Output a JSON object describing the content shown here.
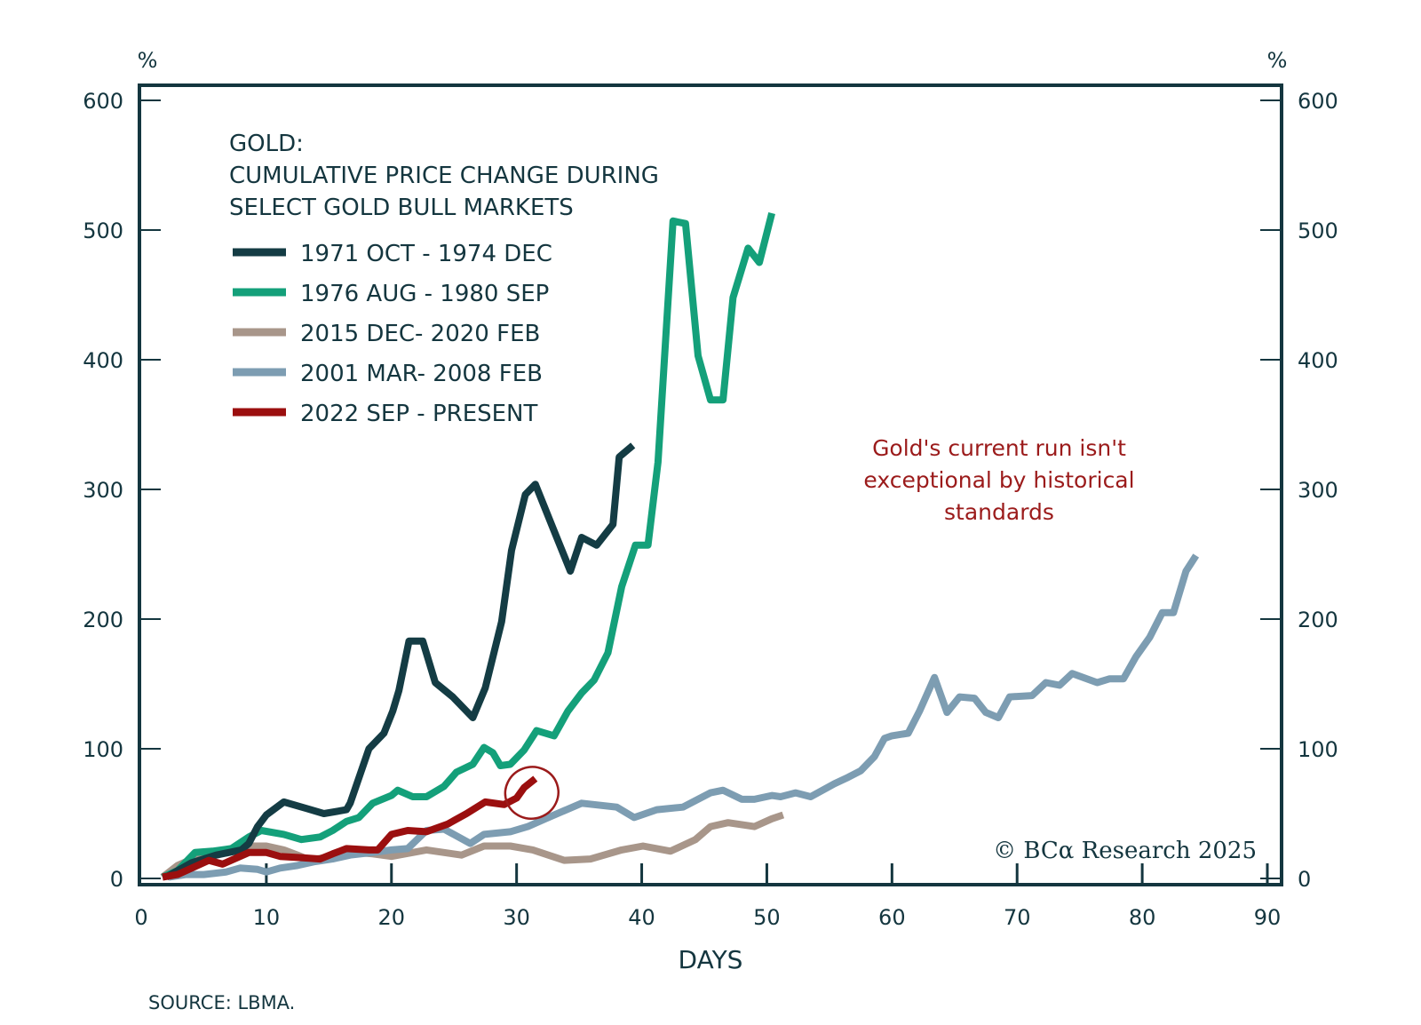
{
  "chart_data": {
    "type": "line",
    "title": "GOLD:",
    "subtitle_lines": [
      "CUMULATIVE PRICE CHANGE DURING",
      "SELECT GOLD BULL MARKETS"
    ],
    "xlabel": "DAYS",
    "ylabel_left": "%",
    "ylabel_right": "%",
    "xlim": [
      0,
      90
    ],
    "ylim": [
      0,
      600
    ],
    "x_ticks": [
      0,
      10,
      20,
      30,
      40,
      50,
      60,
      70,
      80,
      90
    ],
    "y_ticks": [
      0,
      100,
      200,
      300,
      400,
      500,
      600
    ],
    "grid": false,
    "legend_position": "top-left",
    "annotation": {
      "lines": [
        "Gold's current run isn't",
        "exceptional by historical",
        "standards"
      ],
      "color": "#9b1b1b",
      "circled_point": [
        31.5,
        77
      ]
    },
    "copyright": "© BCα Research 2025",
    "source": "SOURCE: LBMA.",
    "series": [
      {
        "name": "1971 OCT - 1974 DEC",
        "color": "#143c44",
        "points": [
          [
            2,
            1
          ],
          [
            4,
            12
          ],
          [
            6,
            18
          ],
          [
            8,
            22
          ],
          [
            8.6,
            27
          ],
          [
            9.3,
            40
          ],
          [
            10,
            49
          ],
          [
            11.4,
            59
          ],
          [
            13.2,
            54
          ],
          [
            14.6,
            50
          ],
          [
            16.4,
            53
          ],
          [
            16.7,
            58
          ],
          [
            18.2,
            100
          ],
          [
            19.4,
            112
          ],
          [
            20.1,
            129
          ],
          [
            20.6,
            145
          ],
          [
            21.4,
            183
          ],
          [
            22.5,
            183
          ],
          [
            23.5,
            151
          ],
          [
            24.9,
            140
          ],
          [
            26.5,
            124
          ],
          [
            27.5,
            147
          ],
          [
            28.8,
            198
          ],
          [
            29.6,
            253
          ],
          [
            30.7,
            296
          ],
          [
            31.5,
            304
          ],
          [
            33.0,
            268
          ],
          [
            34.3,
            237
          ],
          [
            35.2,
            263
          ],
          [
            36.4,
            257
          ],
          [
            37.7,
            273
          ],
          [
            38.2,
            325
          ],
          [
            39.3,
            334
          ]
        ]
      },
      {
        "name": "1976 AUG - 1980 SEP",
        "color": "#14a07a",
        "points": [
          [
            1.7,
            1
          ],
          [
            2.9,
            6
          ],
          [
            4.3,
            20
          ],
          [
            5.7,
            21
          ],
          [
            7.2,
            23
          ],
          [
            8.6,
            32
          ],
          [
            9.6,
            37
          ],
          [
            11.4,
            34
          ],
          [
            12.8,
            30
          ],
          [
            14.3,
            32
          ],
          [
            15.3,
            37
          ],
          [
            16.4,
            44
          ],
          [
            17.4,
            47
          ],
          [
            18.5,
            58
          ],
          [
            20,
            64
          ],
          [
            20.5,
            68
          ],
          [
            21.7,
            63
          ],
          [
            22.8,
            63
          ],
          [
            24.2,
            71
          ],
          [
            25.2,
            82
          ],
          [
            26.5,
            88
          ],
          [
            27.4,
            101
          ],
          [
            28.1,
            97
          ],
          [
            28.7,
            87
          ],
          [
            29.5,
            88
          ],
          [
            30.6,
            99
          ],
          [
            31.6,
            114
          ],
          [
            33.0,
            110
          ],
          [
            34.1,
            129
          ],
          [
            35.2,
            143
          ],
          [
            36.2,
            153
          ],
          [
            37.3,
            174
          ],
          [
            38.4,
            225
          ],
          [
            39.5,
            257
          ],
          [
            40.5,
            257
          ],
          [
            41.3,
            321
          ],
          [
            42.5,
            507
          ],
          [
            43.5,
            505
          ],
          [
            44.5,
            403
          ],
          [
            45.5,
            369
          ],
          [
            46.5,
            369
          ],
          [
            47.3,
            448
          ],
          [
            48.5,
            486
          ],
          [
            49.4,
            475
          ],
          [
            50.4,
            513
          ]
        ]
      },
      {
        "name": "2015 DEC- 2020 FEB",
        "color": "#a8968a",
        "points": [
          [
            1.7,
            1
          ],
          [
            2.9,
            10
          ],
          [
            4.3,
            16
          ],
          [
            5.7,
            18
          ],
          [
            7.2,
            21
          ],
          [
            8.6,
            25
          ],
          [
            10,
            25
          ],
          [
            11.4,
            22
          ],
          [
            12.5,
            18
          ],
          [
            13.5,
            14
          ],
          [
            14.6,
            16
          ],
          [
            15.7,
            18
          ],
          [
            17.1,
            20
          ],
          [
            18.5,
            19
          ],
          [
            20,
            17
          ],
          [
            22.8,
            22
          ],
          [
            25.6,
            18
          ],
          [
            27.4,
            25
          ],
          [
            29.5,
            25
          ],
          [
            31.3,
            22
          ],
          [
            33.8,
            14
          ],
          [
            35.9,
            15
          ],
          [
            38.4,
            22
          ],
          [
            40.1,
            25
          ],
          [
            42.3,
            21
          ],
          [
            44.3,
            30
          ],
          [
            45.5,
            40
          ],
          [
            46.9,
            43
          ],
          [
            49,
            40
          ],
          [
            50.4,
            46
          ],
          [
            51.3,
            49
          ]
        ]
      },
      {
        "name": "2001 MAR- 2008 FEB",
        "color": "#7d9db2",
        "points": [
          [
            2.2,
            1
          ],
          [
            3.6,
            3
          ],
          [
            5,
            3
          ],
          [
            6.8,
            5
          ],
          [
            7.9,
            8
          ],
          [
            9.3,
            7
          ],
          [
            10,
            5
          ],
          [
            11.1,
            8
          ],
          [
            12.5,
            10
          ],
          [
            13.9,
            13
          ],
          [
            15.3,
            15
          ],
          [
            16.7,
            18
          ],
          [
            18.5,
            20
          ],
          [
            20,
            22
          ],
          [
            21.3,
            23
          ],
          [
            22.8,
            37
          ],
          [
            24.2,
            38
          ],
          [
            26.3,
            27
          ],
          [
            27.4,
            34
          ],
          [
            29.5,
            36
          ],
          [
            30.9,
            40
          ],
          [
            32.3,
            46
          ],
          [
            35.2,
            58
          ],
          [
            38,
            55
          ],
          [
            39.4,
            47
          ],
          [
            41.2,
            53
          ],
          [
            43.3,
            55
          ],
          [
            45.5,
            66
          ],
          [
            46.5,
            68
          ],
          [
            48,
            61
          ],
          [
            49,
            61
          ],
          [
            50.4,
            64
          ],
          [
            51.1,
            63
          ],
          [
            52.3,
            66
          ],
          [
            53.5,
            63
          ],
          [
            55.4,
            73
          ],
          [
            56.5,
            78
          ],
          [
            57.5,
            83
          ],
          [
            58.6,
            94
          ],
          [
            59.4,
            108
          ],
          [
            60,
            110
          ],
          [
            61.3,
            112
          ],
          [
            62.2,
            129
          ],
          [
            63.4,
            155
          ],
          [
            64.4,
            128
          ],
          [
            65.4,
            140
          ],
          [
            66.6,
            139
          ],
          [
            67.5,
            128
          ],
          [
            68.5,
            124
          ],
          [
            69.4,
            140
          ],
          [
            71.2,
            141
          ],
          [
            72.3,
            151
          ],
          [
            73.4,
            149
          ],
          [
            74.4,
            158
          ],
          [
            76.4,
            151
          ],
          [
            77.4,
            154
          ],
          [
            78.5,
            154
          ],
          [
            79.5,
            171
          ],
          [
            80.6,
            186
          ],
          [
            81.6,
            205
          ],
          [
            82.5,
            205
          ],
          [
            83.5,
            237
          ],
          [
            84.3,
            249
          ]
        ]
      },
      {
        "name": "2022 SEP - PRESENT",
        "color": "#9b0f0f",
        "points": [
          [
            1.7,
            1
          ],
          [
            2.9,
            3
          ],
          [
            5.4,
            14
          ],
          [
            6.5,
            11
          ],
          [
            8.6,
            20
          ],
          [
            10,
            20
          ],
          [
            11.1,
            17
          ],
          [
            12.8,
            16
          ],
          [
            14.3,
            15
          ],
          [
            15.3,
            19
          ],
          [
            16.4,
            23
          ],
          [
            18.2,
            22
          ],
          [
            18.9,
            22
          ],
          [
            20,
            34
          ],
          [
            21.3,
            37
          ],
          [
            22.8,
            36
          ],
          [
            24.5,
            42
          ],
          [
            26,
            50
          ],
          [
            27.5,
            59
          ],
          [
            29,
            57
          ],
          [
            30,
            62
          ],
          [
            30.6,
            70
          ],
          [
            31.5,
            77
          ]
        ]
      }
    ]
  }
}
